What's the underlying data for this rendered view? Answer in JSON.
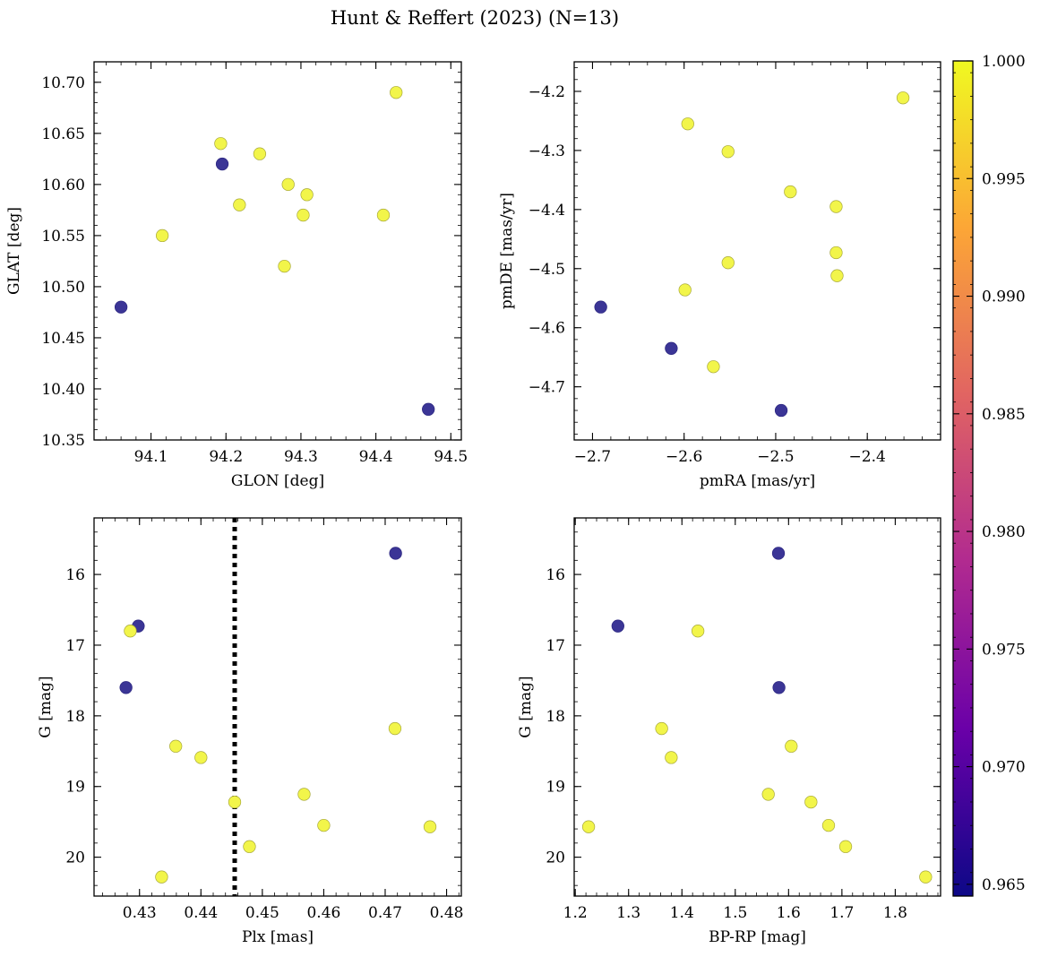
{
  "figure": {
    "title": "Hunt & Reffert (2023) (N=13)"
  },
  "colormap": {
    "name": "plasma",
    "stops": [
      "#0d0887",
      "#6a00a8",
      "#b12a90",
      "#e16462",
      "#fca636",
      "#f0f921"
    ],
    "range": [
      0.9645,
      1.0
    ],
    "ticks": [
      0.965,
      0.97,
      0.975,
      0.98,
      0.985,
      0.99,
      0.995,
      1.0
    ],
    "tick_labels": [
      "0.965",
      "0.970",
      "0.975",
      "0.980",
      "0.985",
      "0.990",
      "0.995",
      "1.000"
    ],
    "low_color": "#3b3596",
    "high_color": "#f2f54a"
  },
  "chart_data": [
    {
      "type": "scatter",
      "id": "sky",
      "xlabel": "GLON [deg]",
      "ylabel": "GLAT [deg]",
      "xlim": [
        94.024,
        94.514
      ],
      "ylim": [
        10.35,
        10.72
      ],
      "invert_y": false,
      "xticks": [
        94.1,
        94.2,
        94.3,
        94.4,
        94.5
      ],
      "xtick_labels": [
        "94.1",
        "94.2",
        "94.3",
        "94.4",
        "94.5"
      ],
      "yticks": [
        10.35,
        10.4,
        10.45,
        10.5,
        10.55,
        10.6,
        10.65,
        10.7
      ],
      "ytick_labels": [
        "10.35",
        "10.40",
        "10.45",
        "10.50",
        "10.55",
        "10.60",
        "10.65",
        "10.70"
      ],
      "xminor": 0.02,
      "yminor": 0.01,
      "points": [
        {
          "x": 94.06,
          "y": 10.48,
          "c": 0.9645
        },
        {
          "x": 94.195,
          "y": 10.62,
          "c": 0.9645
        },
        {
          "x": 94.47,
          "y": 10.38,
          "c": 0.9645
        },
        {
          "x": 94.115,
          "y": 10.55,
          "c": 1.0
        },
        {
          "x": 94.193,
          "y": 10.64,
          "c": 1.0
        },
        {
          "x": 94.218,
          "y": 10.58,
          "c": 1.0
        },
        {
          "x": 94.245,
          "y": 10.63,
          "c": 1.0
        },
        {
          "x": 94.278,
          "y": 10.52,
          "c": 1.0
        },
        {
          "x": 94.283,
          "y": 10.6,
          "c": 1.0
        },
        {
          "x": 94.303,
          "y": 10.57,
          "c": 1.0
        },
        {
          "x": 94.308,
          "y": 10.59,
          "c": 1.0
        },
        {
          "x": 94.41,
          "y": 10.57,
          "c": 1.0
        },
        {
          "x": 94.427,
          "y": 10.69,
          "c": 1.0
        }
      ]
    },
    {
      "type": "scatter",
      "id": "pm",
      "xlabel": "pmRA [mas/yr]",
      "ylabel": "pmDE [mas/yr]",
      "xlim": [
        -2.72,
        -2.32
      ],
      "ylim": [
        -4.79,
        -4.15
      ],
      "invert_y": false,
      "xticks": [
        -2.7,
        -2.6,
        -2.5,
        -2.4
      ],
      "xtick_labels": [
        "−2.7",
        "−2.6",
        "−2.5",
        "−2.4"
      ],
      "yticks": [
        -4.7,
        -4.6,
        -4.5,
        -4.4,
        -4.3,
        -4.2
      ],
      "ytick_labels": [
        "−4.7",
        "−4.6",
        "−4.5",
        "−4.4",
        "−4.3",
        "−4.2"
      ],
      "xminor": 0.02,
      "yminor": 0.02,
      "points": [
        {
          "x": -2.691,
          "y": -4.565,
          "c": 0.9645
        },
        {
          "x": -2.614,
          "y": -4.635,
          "c": 0.9645
        },
        {
          "x": -2.494,
          "y": -4.74,
          "c": 0.9645
        },
        {
          "x": -2.596,
          "y": -4.255,
          "c": 1.0
        },
        {
          "x": -2.552,
          "y": -4.302,
          "c": 1.0
        },
        {
          "x": -2.484,
          "y": -4.37,
          "c": 1.0
        },
        {
          "x": -2.434,
          "y": -4.395,
          "c": 1.0
        },
        {
          "x": -2.434,
          "y": -4.473,
          "c": 1.0
        },
        {
          "x": -2.552,
          "y": -4.49,
          "c": 1.0
        },
        {
          "x": -2.433,
          "y": -4.512,
          "c": 1.0
        },
        {
          "x": -2.599,
          "y": -4.536,
          "c": 1.0
        },
        {
          "x": -2.568,
          "y": -4.666,
          "c": 1.0
        },
        {
          "x": -2.361,
          "y": -4.211,
          "c": 1.0
        }
      ]
    },
    {
      "type": "scatter",
      "id": "plx",
      "xlabel": "Plx [mas]",
      "ylabel": "G [mag]",
      "xlim": [
        0.4226,
        0.4824
      ],
      "ylim": [
        15.2,
        20.55
      ],
      "invert_y": true,
      "vline": {
        "x": 0.4455,
        "style": "dotted"
      },
      "xticks": [
        0.43,
        0.44,
        0.45,
        0.46,
        0.47,
        0.48
      ],
      "xtick_labels": [
        "0.43",
        "0.44",
        "0.45",
        "0.46",
        "0.47",
        "0.48"
      ],
      "yticks": [
        16,
        17,
        18,
        19,
        20
      ],
      "ytick_labels": [
        "16",
        "17",
        "18",
        "19",
        "20"
      ],
      "xminor": 0.002,
      "yminor": 0.2,
      "points": [
        {
          "x": 0.4298,
          "y": 16.73,
          "c": 0.9645
        },
        {
          "x": 0.4278,
          "y": 17.6,
          "c": 0.9645
        },
        {
          "x": 0.4717,
          "y": 15.7,
          "c": 0.9645
        },
        {
          "x": 0.4285,
          "y": 16.8,
          "c": 1.0
        },
        {
          "x": 0.4359,
          "y": 18.43,
          "c": 1.0
        },
        {
          "x": 0.44,
          "y": 18.59,
          "c": 1.0
        },
        {
          "x": 0.4455,
          "y": 19.22,
          "c": 1.0
        },
        {
          "x": 0.4336,
          "y": 20.28,
          "c": 1.0
        },
        {
          "x": 0.4479,
          "y": 19.85,
          "c": 1.0
        },
        {
          "x": 0.4568,
          "y": 19.11,
          "c": 1.0
        },
        {
          "x": 0.46,
          "y": 19.55,
          "c": 1.0
        },
        {
          "x": 0.4716,
          "y": 18.18,
          "c": 1.0
        },
        {
          "x": 0.4773,
          "y": 19.57,
          "c": 1.0
        }
      ]
    },
    {
      "type": "scatter",
      "id": "cmd",
      "xlabel": "BP-RP [mag]",
      "ylabel": "G [mag]",
      "xlim": [
        1.198,
        1.885
      ],
      "ylim": [
        15.2,
        20.55
      ],
      "invert_y": true,
      "xticks": [
        1.2,
        1.3,
        1.4,
        1.5,
        1.6,
        1.7,
        1.8
      ],
      "xtick_labels": [
        "1.2",
        "1.3",
        "1.4",
        "1.5",
        "1.6",
        "1.7",
        "1.8"
      ],
      "yticks": [
        16,
        17,
        18,
        19,
        20
      ],
      "ytick_labels": [
        "16",
        "17",
        "18",
        "19",
        "20"
      ],
      "xminor": 0.02,
      "yminor": 0.2,
      "points": [
        {
          "x": 1.581,
          "y": 15.7,
          "c": 0.9645
        },
        {
          "x": 1.28,
          "y": 16.73,
          "c": 0.9645
        },
        {
          "x": 1.582,
          "y": 17.6,
          "c": 0.9645
        },
        {
          "x": 1.43,
          "y": 16.8,
          "c": 1.0
        },
        {
          "x": 1.362,
          "y": 18.18,
          "c": 1.0
        },
        {
          "x": 1.38,
          "y": 18.59,
          "c": 1.0
        },
        {
          "x": 1.605,
          "y": 18.43,
          "c": 1.0
        },
        {
          "x": 1.562,
          "y": 19.11,
          "c": 1.0
        },
        {
          "x": 1.642,
          "y": 19.22,
          "c": 1.0
        },
        {
          "x": 1.675,
          "y": 19.55,
          "c": 1.0
        },
        {
          "x": 1.225,
          "y": 19.57,
          "c": 1.0
        },
        {
          "x": 1.707,
          "y": 19.85,
          "c": 1.0
        },
        {
          "x": 1.857,
          "y": 20.28,
          "c": 1.0
        }
      ]
    }
  ]
}
